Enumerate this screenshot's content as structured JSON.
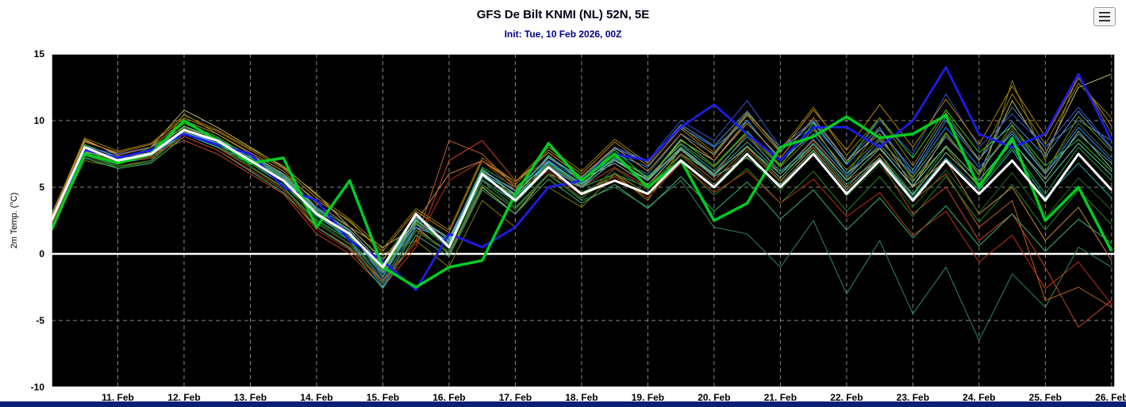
{
  "menu_icon": "hamburger-icon",
  "chart_data": {
    "type": "line",
    "title": "GFS De Bilt KNMI (NL) 52N, 5E",
    "subtitle": "Init: Tue, 10 Feb 2026, 00Z",
    "ylabel": "2m Temp. (°C)",
    "xlim": [
      10,
      26.05
    ],
    "ylim": [
      -10,
      15
    ],
    "x0": 10,
    "dx": 0.5,
    "grid": "dashed",
    "legend": "none",
    "plot_bg": "#000000",
    "grid_color": "#888888",
    "frame_color": "#ffffff",
    "zero_line_color": "#ffffff",
    "y_ticks": [
      15,
      10,
      5,
      0,
      -5,
      -10
    ],
    "x_ticks": [
      {
        "day": 11,
        "label": "11. Feb"
      },
      {
        "day": 12,
        "label": "12. Feb"
      },
      {
        "day": 13,
        "label": "13. Feb"
      },
      {
        "day": 14,
        "label": "14. Feb"
      },
      {
        "day": 15,
        "label": "15. Feb"
      },
      {
        "day": 16,
        "label": "16. Feb"
      },
      {
        "day": 17,
        "label": "17. Feb"
      },
      {
        "day": 18,
        "label": "18. Feb"
      },
      {
        "day": 19,
        "label": "19. Feb"
      },
      {
        "day": 20,
        "label": "20. Feb"
      },
      {
        "day": 21,
        "label": "21. Feb"
      },
      {
        "day": 22,
        "label": "22. Feb"
      },
      {
        "day": 23,
        "label": "23. Feb"
      },
      {
        "day": 24,
        "label": "24. Feb"
      },
      {
        "day": 25,
        "label": "25. Feb"
      },
      {
        "day": 26,
        "label": "26. Feb"
      }
    ],
    "series": [
      {
        "name": "control-run",
        "color": "#1d1de8",
        "width": 2.8,
        "values": [
          2.5,
          7.8,
          7.2,
          7.8,
          9,
          8.2,
          7.5,
          5,
          4,
          1,
          -0.5,
          -2.7,
          1.5,
          0.5,
          2,
          5,
          5.5,
          7.5,
          7,
          9.5,
          11.2,
          9,
          7,
          9.5,
          9.5,
          8,
          10,
          14,
          9,
          8,
          9,
          13.5,
          8.5
        ]
      },
      {
        "name": "operational-run",
        "color": "#00cc22",
        "width": 3.5,
        "values": [
          1.8,
          7.5,
          6.8,
          7.5,
          10,
          8.5,
          6.8,
          7.2,
          2,
          5.5,
          -1,
          -2.5,
          -1,
          -0.5,
          4.5,
          8.3,
          5.5,
          7.5,
          5,
          7,
          2.5,
          3.8,
          8,
          8.8,
          10.3,
          8.7,
          9,
          10.4,
          5,
          8.7,
          2.5,
          5,
          0.2
        ]
      },
      {
        "name": "ensemble-mean",
        "color": "#ffffff",
        "width": 3,
        "values": [
          2.5,
          8,
          7,
          7.5,
          9.3,
          8.5,
          7,
          5.5,
          3,
          1.5,
          -1,
          3,
          0.5,
          6,
          4,
          6.5,
          4.5,
          5.5,
          4.5,
          7,
          5,
          7.5,
          5,
          7.5,
          4.5,
          7,
          4,
          7,
          4.5,
          7,
          4,
          7.5,
          4.8
        ]
      }
    ],
    "members": [
      {
        "name": "ens-01",
        "color": "#2e8b57",
        "values": [
          2,
          7.5,
          6.5,
          7,
          9,
          8,
          6.5,
          5,
          2.5,
          1,
          -1.5,
          2,
          0,
          5.5,
          3.5,
          6,
          4,
          5,
          3.5,
          5.5,
          2,
          1.5,
          -1,
          2.5,
          -3,
          1,
          -4.5,
          -1,
          -6.5,
          -1.5,
          -4,
          0.5,
          -1
        ]
      },
      {
        "name": "ens-02",
        "color": "#22aa44",
        "values": [
          2.5,
          8,
          7,
          8,
          9.5,
          8.7,
          7,
          6,
          3.5,
          2,
          -0.5,
          3,
          1,
          6.5,
          5,
          7,
          5,
          6,
          5,
          7.5,
          6,
          8,
          6,
          8,
          5,
          7.5,
          4.5,
          8,
          5,
          8,
          4.5,
          8,
          5.5
        ]
      },
      {
        "name": "ens-03",
        "color": "#808000",
        "values": [
          2,
          7,
          6.5,
          7,
          10.5,
          9,
          7.5,
          6,
          4,
          2.5,
          0,
          1,
          -1,
          4,
          2,
          5,
          3.5,
          6,
          4,
          8,
          6,
          9,
          6.5,
          9,
          6,
          9.5,
          5.5,
          8,
          5,
          13,
          7,
          13.5,
          9
        ]
      },
      {
        "name": "ens-04",
        "color": "#bdb76b",
        "values": [
          3,
          8.5,
          7.5,
          8,
          10.8,
          9.5,
          8,
          6.5,
          4.5,
          2,
          0.5,
          2,
          0,
          5,
          3,
          6,
          5,
          7,
          5.5,
          8.5,
          7,
          10,
          7,
          9.5,
          6,
          8,
          5,
          9,
          6,
          11.5,
          7.5,
          12.5,
          13.5
        ]
      },
      {
        "name": "ens-05",
        "color": "#c06020",
        "values": [
          2,
          8,
          7,
          7.5,
          9,
          8,
          6.5,
          5,
          2,
          0.5,
          -2,
          1,
          8.5,
          7.5,
          5,
          6.5,
          4.5,
          6,
          4.5,
          7.5,
          5.5,
          8,
          5.5,
          8,
          5,
          7.5,
          4,
          6,
          2,
          4,
          -3.5,
          -2.5,
          -4
        ]
      },
      {
        "name": "ens-06",
        "color": "#c44422",
        "values": [
          2.5,
          8,
          7,
          7.5,
          8.5,
          7.5,
          6,
          4.5,
          1.5,
          0,
          -2.5,
          0.5,
          7,
          8.5,
          5.5,
          7,
          5,
          6.5,
          5,
          8,
          6,
          9,
          6,
          8.5,
          5.5,
          7,
          3,
          5,
          1,
          3,
          -1,
          -5.5,
          -3.5
        ]
      },
      {
        "name": "ens-07",
        "color": "#4682b4",
        "values": [
          2.5,
          7.5,
          7,
          7.5,
          9,
          8,
          7,
          5.5,
          3,
          1,
          -2,
          2,
          1,
          5.5,
          4,
          6.5,
          5,
          7,
          6,
          9,
          7.5,
          10.5,
          8,
          10,
          7,
          9.5,
          6,
          10,
          7,
          11,
          8,
          10,
          8.5
        ]
      },
      {
        "name": "ens-08",
        "color": "#3355cc",
        "values": [
          2.5,
          8,
          7.5,
          8,
          9,
          8.5,
          7,
          5.5,
          3.5,
          1.5,
          -1.5,
          2.5,
          0.5,
          6,
          4.5,
          7,
          5.5,
          8,
          7,
          10,
          8.5,
          11.5,
          8,
          9.5,
          7,
          10,
          7.5,
          12,
          8,
          10.5,
          8,
          11,
          8
        ]
      },
      {
        "name": "ens-09",
        "color": "#1e90ff",
        "values": [
          3,
          8,
          7,
          7.5,
          9.2,
          8.2,
          7.2,
          5.8,
          3,
          1,
          -2.5,
          2,
          1,
          6,
          4,
          7,
          5,
          7.5,
          6.5,
          9.5,
          8,
          10,
          7,
          9,
          6,
          8.5,
          6,
          9.5,
          6.5,
          9,
          6,
          9.5,
          7
        ]
      },
      {
        "name": "ens-10",
        "color": "#20b2aa",
        "values": [
          2,
          7.5,
          6.8,
          7.2,
          9,
          8,
          6.8,
          5.2,
          2.8,
          1.2,
          -1,
          2.2,
          0.8,
          5.8,
          4.2,
          6.8,
          5.2,
          7.2,
          5.8,
          8.2,
          6.2,
          8.8,
          6.2,
          8.2,
          5.2,
          7.2,
          4.2,
          7.2,
          4.8,
          7.8,
          4.2,
          6.8,
          4.2
        ]
      },
      {
        "name": "ens-11",
        "color": "#228b22",
        "values": [
          2.2,
          7.8,
          6.8,
          7.4,
          9.4,
          8.4,
          6.8,
          5.4,
          2.6,
          1,
          -1.8,
          2.4,
          0.4,
          5.6,
          3.8,
          6.4,
          4.6,
          5.8,
          4.2,
          6.8,
          4.4,
          6.4,
          3.8,
          6.2,
          3.2,
          5.8,
          2.8,
          5.8,
          2.4,
          5.2,
          1.8,
          4.8,
          2.2
        ]
      },
      {
        "name": "ens-12",
        "color": "#8fbc8f",
        "values": [
          2.4,
          7.6,
          7.2,
          7.6,
          9.6,
          8.6,
          7.4,
          6,
          3.4,
          1.8,
          -0.8,
          2.8,
          1.2,
          6.2,
          4.8,
          7.2,
          5.6,
          6.8,
          5.2,
          7.8,
          5.8,
          7.2,
          5.2,
          7.8,
          4.8,
          7.2,
          4.4,
          7.6,
          5.2,
          8.4,
          5.6,
          9.2,
          6.4
        ]
      },
      {
        "name": "ens-13",
        "color": "#32cd32",
        "values": [
          2.6,
          8.2,
          7.2,
          7.8,
          9.8,
          8.8,
          7.2,
          5.8,
          3.2,
          1.4,
          -1.2,
          2.6,
          0.6,
          6.4,
          4.4,
          7.4,
          5.4,
          7.8,
          5.6,
          8.6,
          6.6,
          9.2,
          6.6,
          9.8,
          6.8,
          10.2,
          7.2,
          10.8,
          7.6,
          9.6,
          6.6,
          8.6,
          6.2
        ]
      },
      {
        "name": "ens-14",
        "color": "#b8860b",
        "values": [
          2.8,
          8.4,
          7.6,
          8.2,
          10.2,
          9.2,
          7.8,
          6.4,
          4.2,
          2.4,
          0.2,
          3.2,
          1.6,
          7,
          5.2,
          7.8,
          6,
          8.4,
          6.6,
          9.4,
          7.4,
          10.4,
          7.6,
          10.8,
          7.8,
          11.2,
          8,
          11.6,
          8.2,
          12.6,
          8.8,
          13.2,
          9.6
        ]
      },
      {
        "name": "ens-15",
        "color": "#556b2f",
        "values": [
          2.2,
          7.4,
          6.6,
          7,
          9.2,
          8.2,
          6.6,
          5,
          2.4,
          0.8,
          -2.2,
          1.8,
          0.2,
          5.2,
          3.4,
          6,
          4.2,
          6.4,
          4.8,
          7.4,
          5.2,
          7.8,
          5.4,
          8.2,
          5.6,
          8.6,
          5.8,
          9,
          6,
          9.4,
          6.2,
          9.8,
          7.2
        ]
      },
      {
        "name": "ens-16",
        "color": "#3cb371",
        "values": [
          2,
          7.2,
          6.4,
          6.8,
          8.8,
          7.8,
          6.2,
          4.6,
          2,
          0.4,
          -2.6,
          1.4,
          -0.2,
          4.8,
          3,
          5.6,
          3.8,
          5.2,
          3.4,
          5.8,
          3.2,
          5.4,
          2.6,
          4.8,
          1.8,
          4.2,
          1.2,
          3.6,
          0.6,
          3,
          0.2,
          2.6,
          0.8
        ]
      },
      {
        "name": "ens-17",
        "color": "#cd853f",
        "values": [
          2.6,
          8.6,
          7.4,
          8,
          10,
          9,
          7.6,
          6.2,
          3.8,
          2,
          -0.4,
          2.4,
          6,
          7,
          5.4,
          7.6,
          5.8,
          8,
          6.2,
          9,
          7,
          9.8,
          7.2,
          10.2,
          7,
          9,
          5,
          7,
          3,
          5,
          1,
          3.5,
          -0.5
        ]
      },
      {
        "name": "ens-18",
        "color": "#5f9ea0",
        "values": [
          2.4,
          7.8,
          7,
          7.4,
          9,
          8.2,
          7,
          5.6,
          3,
          1.6,
          -1.4,
          2.2,
          0.8,
          5.8,
          4.4,
          6.6,
          5,
          7,
          5.6,
          8,
          6,
          8.4,
          6,
          8.6,
          5.8,
          8.2,
          5.4,
          8.8,
          6.2,
          9.2,
          6,
          9,
          6.8
        ]
      },
      {
        "name": "ens-19",
        "color": "#1c6b1c",
        "values": [
          2.1,
          7.3,
          6.5,
          6.9,
          9.1,
          8.1,
          6.5,
          4.9,
          2.3,
          0.7,
          -2.3,
          1.7,
          0.1,
          5.1,
          3.3,
          5.9,
          4.1,
          6.1,
          4.5,
          7.1,
          4.9,
          7.3,
          4.7,
          7.7,
          4.3,
          6.7,
          3.5,
          6.3,
          3.1,
          6.1,
          2.7,
          5.7,
          3.3
        ]
      },
      {
        "name": "ens-20",
        "color": "#6b8e23",
        "values": [
          2.3,
          7.7,
          6.9,
          7.3,
          9.5,
          8.5,
          6.9,
          5.5,
          2.9,
          1.3,
          -1.3,
          2.3,
          0.7,
          5.9,
          4.3,
          6.7,
          5.1,
          7.3,
          5.7,
          8.3,
          6.5,
          9.1,
          6.7,
          9.3,
          6.3,
          8.7,
          5.7,
          9.1,
          5.9,
          9.7,
          6.1,
          10.3,
          7.7
        ]
      },
      {
        "name": "ens-21",
        "color": "#bb3311",
        "values": [
          2.2,
          7.9,
          6.9,
          7.2,
          8.8,
          7.8,
          6.3,
          4.8,
          1.8,
          0.3,
          -2.1,
          0.8,
          5.5,
          7,
          4.8,
          6.2,
          4.4,
          5.8,
          4.2,
          6.8,
          4.6,
          6.2,
          3.8,
          5.6,
          2.8,
          4.6,
          1.4,
          3.2,
          -0.6,
          1.4,
          -2.6,
          -0.6,
          -3.8
        ]
      },
      {
        "name": "ens-22",
        "color": "#5599dd",
        "values": [
          2.7,
          8.1,
          7.3,
          7.7,
          9.3,
          8.3,
          7.3,
          5.9,
          3.3,
          1.7,
          -1.7,
          2.7,
          1.1,
          6.3,
          4.7,
          7.3,
          5.7,
          7.9,
          6.9,
          9.7,
          8.1,
          10.7,
          7.7,
          9.9,
          6.7,
          9.3,
          6.3,
          10.3,
          7.1,
          9.9,
          7.3,
          10.7,
          7.9
        ]
      },
      {
        "name": "ens-23",
        "color": "#66cdaa",
        "values": [
          2.5,
          7.7,
          7.1,
          7.5,
          9.1,
          8.3,
          7.1,
          5.7,
          3.1,
          1.5,
          -0.9,
          2.5,
          0.9,
          6.1,
          4.5,
          6.9,
          5.3,
          7.1,
          5.5,
          7.9,
          5.9,
          8.1,
          5.7,
          8.3,
          5.5,
          7.9,
          5.1,
          8.1,
          5.5,
          8.5,
          5.3,
          8.3,
          5.9
        ]
      },
      {
        "name": "ens-24",
        "color": "#9a7d0a",
        "values": [
          2.9,
          8.7,
          7.7,
          8.3,
          10.4,
          9.3,
          7.9,
          6.6,
          4.4,
          2.6,
          0.4,
          3.4,
          1.8,
          7.2,
          5.4,
          8,
          6.2,
          8.6,
          6.8,
          9.6,
          7.6,
          10.6,
          7.8,
          11,
          7.4,
          10.2,
          6.6,
          10.6,
          7,
          12,
          8.2,
          12.8,
          10.2
        ]
      }
    ]
  }
}
